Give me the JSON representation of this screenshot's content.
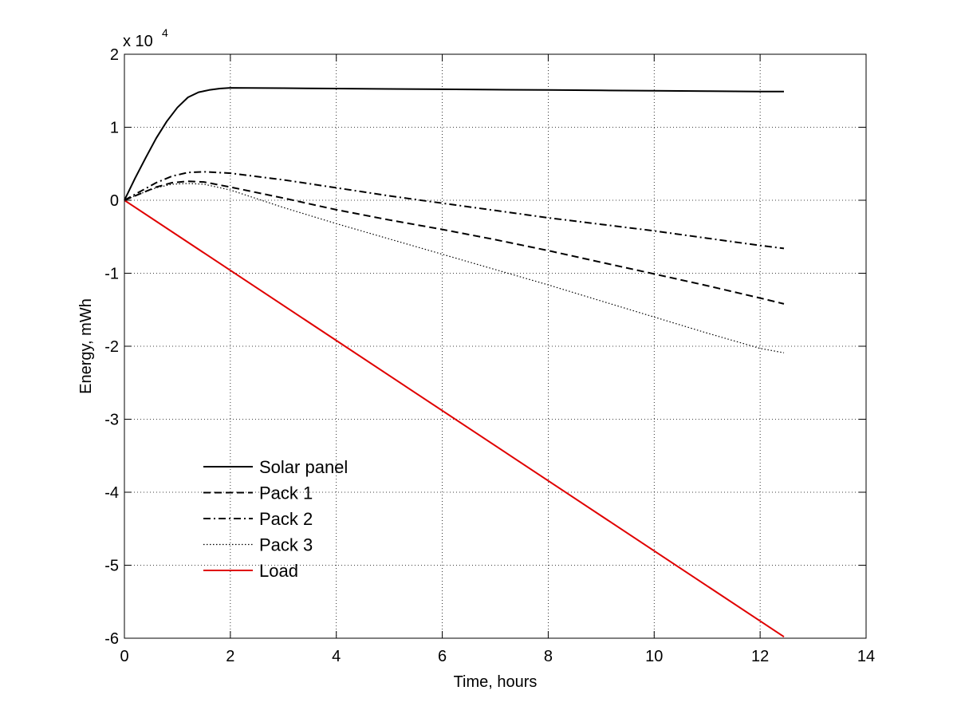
{
  "chart_data": {
    "type": "line",
    "xlabel": "Time, hours",
    "ylabel": "Energy, mWh",
    "y_multiplier_label": "x 10",
    "y_multiplier_exponent": "4",
    "xlim": [
      0,
      14
    ],
    "ylim": [
      -60000,
      20000
    ],
    "xticks": [
      0,
      2,
      4,
      6,
      8,
      10,
      12,
      14
    ],
    "yticks": [
      -60000,
      -50000,
      -40000,
      -30000,
      -20000,
      -10000,
      0,
      10000,
      20000
    ],
    "xtick_labels": [
      "0",
      "2",
      "4",
      "6",
      "8",
      "10",
      "12",
      "14"
    ],
    "ytick_labels": [
      "-6",
      "-5",
      "-4",
      "-3",
      "-2",
      "-1",
      "0",
      "1",
      "2"
    ],
    "grid": true,
    "legend_position": "lower-left",
    "series": [
      {
        "name": "Solar panel",
        "color": "#000000",
        "style": "solid",
        "x": [
          0,
          0.2,
          0.4,
          0.6,
          0.8,
          1.0,
          1.2,
          1.4,
          1.6,
          1.8,
          2.0,
          3,
          4,
          5,
          6,
          7,
          8,
          9,
          10,
          11,
          12,
          12.45
        ],
        "y": [
          0,
          3000,
          5800,
          8500,
          10800,
          12700,
          14100,
          14800,
          15100,
          15300,
          15400,
          15350,
          15300,
          15250,
          15200,
          15150,
          15100,
          15050,
          15000,
          14950,
          14900,
          14900
        ]
      },
      {
        "name": "Pack 1",
        "color": "#000000",
        "style": "dashed",
        "x": [
          0,
          0.3,
          0.6,
          0.9,
          1.2,
          1.5,
          2,
          3,
          4,
          5,
          6,
          7,
          8,
          9,
          10,
          11,
          12,
          12.45
        ],
        "y": [
          0,
          900,
          1800,
          2400,
          2600,
          2500,
          1800,
          300,
          -1300,
          -2700,
          -4000,
          -5400,
          -6900,
          -8500,
          -10100,
          -11700,
          -13400,
          -14200
        ]
      },
      {
        "name": "Pack 2",
        "color": "#000000",
        "style": "dashdot",
        "x": [
          0,
          0.3,
          0.6,
          0.9,
          1.2,
          1.5,
          2,
          3,
          4,
          5,
          6,
          7,
          8,
          9,
          10,
          11,
          12,
          12.45
        ],
        "y": [
          0,
          1200,
          2400,
          3300,
          3800,
          3900,
          3700,
          2800,
          1700,
          600,
          -400,
          -1400,
          -2400,
          -3300,
          -4200,
          -5200,
          -6200,
          -6600
        ]
      },
      {
        "name": "Pack 3",
        "color": "#000000",
        "style": "dotted",
        "x": [
          0,
          0.3,
          0.6,
          0.9,
          1.2,
          1.5,
          2,
          3,
          4,
          5,
          6,
          7,
          8,
          9,
          10,
          11,
          12,
          12.45
        ],
        "y": [
          0,
          900,
          1700,
          2200,
          2300,
          2200,
          1400,
          -1000,
          -3200,
          -5300,
          -7400,
          -9500,
          -11600,
          -13800,
          -16000,
          -18200,
          -20300,
          -20900
        ]
      },
      {
        "name": "Load",
        "color": "#e00000",
        "style": "solid",
        "x": [
          0,
          12.45
        ],
        "y": [
          0,
          -59800
        ]
      }
    ]
  }
}
